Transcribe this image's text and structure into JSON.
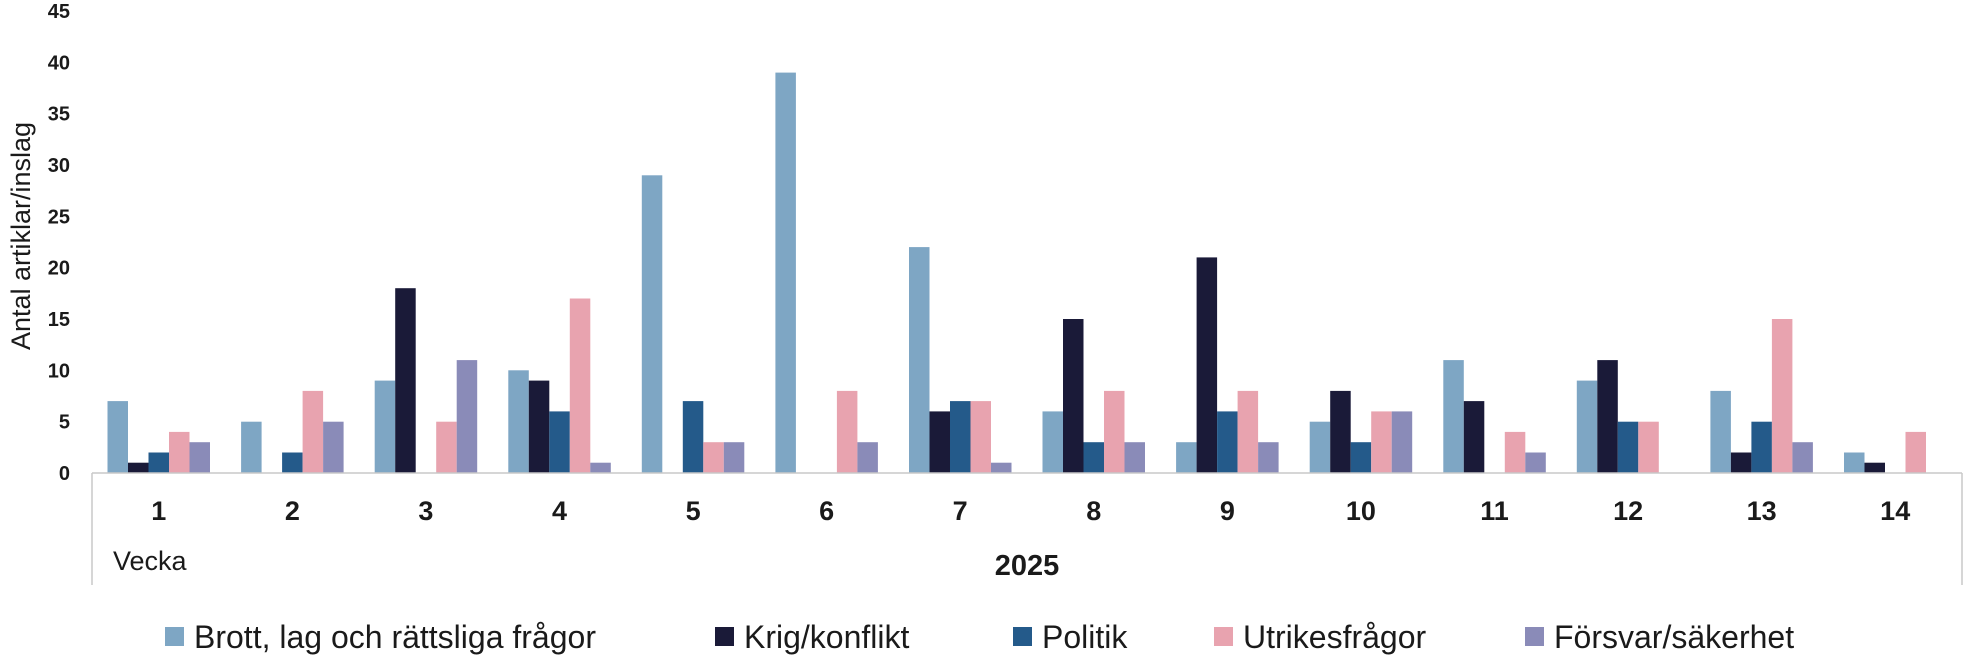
{
  "chart_data": {
    "type": "bar",
    "ylabel": "Antal artiklar/inslag",
    "xlabel": "Vecka",
    "group_label": "2025",
    "ylim": [
      0,
      45
    ],
    "yticks": [
      0,
      5,
      10,
      15,
      20,
      25,
      30,
      35,
      40,
      45
    ],
    "grid": false,
    "legend_position": "bottom",
    "categories": [
      "1",
      "2",
      "3",
      "4",
      "5",
      "6",
      "7",
      "8",
      "9",
      "10",
      "11",
      "12",
      "13",
      "14"
    ],
    "series": [
      {
        "name": "Brott, lag och rättsliga frågor",
        "color": "#7ea6c4",
        "values": [
          7,
          5,
          9,
          10,
          29,
          39,
          22,
          6,
          3,
          5,
          11,
          9,
          8,
          2
        ]
      },
      {
        "name": "Krig/konflikt",
        "color": "#1a1a38",
        "values": [
          1,
          0,
          18,
          9,
          0,
          0,
          6,
          15,
          21,
          8,
          7,
          11,
          2,
          1
        ]
      },
      {
        "name": "Politik",
        "color": "#245a8a",
        "values": [
          2,
          2,
          0,
          6,
          7,
          0,
          7,
          3,
          6,
          3,
          0,
          5,
          5,
          0
        ]
      },
      {
        "name": "Utrikesfrågor",
        "color": "#e8a3af",
        "values": [
          4,
          8,
          5,
          17,
          3,
          8,
          7,
          8,
          8,
          6,
          4,
          5,
          15,
          4
        ]
      },
      {
        "name": "Försvar/säkerhet",
        "color": "#8a8bb8",
        "values": [
          3,
          5,
          11,
          1,
          3,
          3,
          1,
          3,
          3,
          6,
          2,
          0,
          3,
          0
        ]
      }
    ]
  }
}
